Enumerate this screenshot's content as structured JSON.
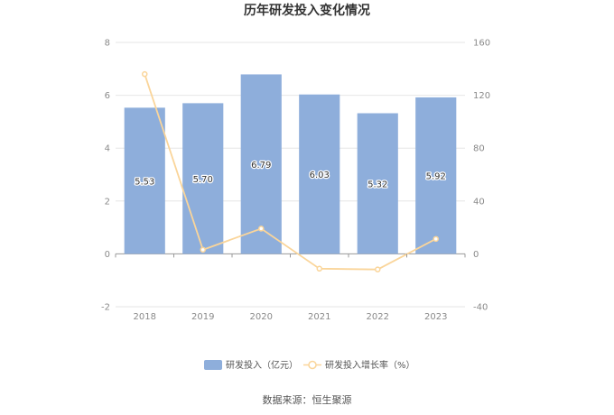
{
  "chart_data": {
    "type": "bar",
    "title": "历年研发投入变化情况",
    "categories": [
      "2018",
      "2019",
      "2020",
      "2021",
      "2022",
      "2023"
    ],
    "series": [
      {
        "name": "研发投入（亿元）",
        "type": "bar",
        "axis": "left",
        "values": [
          5.53,
          5.7,
          6.79,
          6.03,
          5.32,
          5.92
        ],
        "data_labels": [
          "5.53",
          "5.70",
          "6.79",
          "6.03",
          "5.32",
          "5.92"
        ],
        "color": "#8eaedb"
      },
      {
        "name": "研发投入增长率（%）",
        "type": "line",
        "axis": "right",
        "values": [
          136,
          3.1,
          19.1,
          -11.2,
          -11.8,
          11.3
        ],
        "color": "#fad59a"
      }
    ],
    "y_left": {
      "range": [
        -2,
        8
      ],
      "ticks": [
        "-2",
        "0",
        "2",
        "4",
        "6",
        "8"
      ]
    },
    "y_right": {
      "range": [
        -40,
        160
      ],
      "ticks": [
        "-40",
        "0",
        "40",
        "80",
        "120",
        "160"
      ]
    },
    "grid": true,
    "legend_position": "bottom"
  },
  "footer": {
    "source": "数据来源：恒生聚源"
  }
}
